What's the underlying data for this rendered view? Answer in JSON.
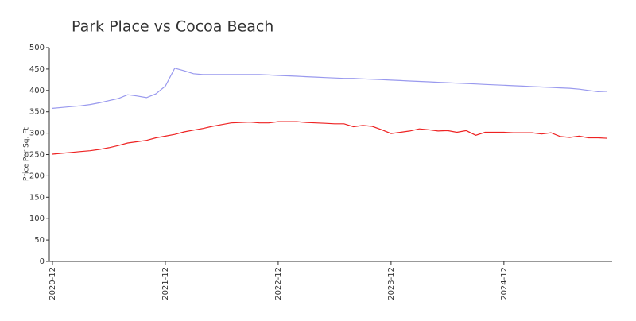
{
  "chart_data": {
    "type": "line",
    "title": "Park Place vs Cocoa Beach",
    "y_label": "Price Per Sq. Ft",
    "categories": [
      "2020-12",
      null,
      null,
      null,
      null,
      null,
      null,
      null,
      null,
      null,
      null,
      null,
      "2021-12",
      null,
      null,
      null,
      null,
      null,
      null,
      null,
      null,
      null,
      null,
      null,
      "2022-12",
      null,
      null,
      null,
      null,
      null,
      null,
      null,
      null,
      null,
      null,
      null,
      "2023-12",
      null,
      null,
      null,
      null,
      null,
      null,
      null,
      null,
      null,
      null,
      null,
      "2024-12",
      null,
      null,
      null,
      null,
      null,
      null,
      null,
      null,
      null,
      null,
      null
    ],
    "series": [
      {
        "color": "#9999ee",
        "values": [
          358,
          360,
          362,
          364,
          367,
          371,
          376,
          381,
          390,
          387,
          383,
          392,
          410,
          452,
          446,
          439,
          437,
          437,
          437,
          437,
          437,
          437,
          437,
          436,
          435,
          434,
          433,
          432,
          431,
          430,
          429,
          428,
          428,
          427,
          426,
          425,
          424,
          423,
          422,
          421,
          420,
          419,
          418,
          417,
          416,
          415,
          414,
          413,
          412,
          411,
          410,
          409,
          408,
          407,
          406,
          405,
          403,
          400,
          397,
          398
        ]
      },
      {
        "color": "#ee2222",
        "values": [
          251,
          253,
          255,
          257,
          259,
          262,
          266,
          271,
          277,
          280,
          283,
          289,
          293,
          297,
          303,
          307,
          311,
          316,
          320,
          324,
          325,
          326,
          324,
          324,
          327,
          327,
          327,
          325,
          324,
          323,
          322,
          322,
          315,
          318,
          316,
          308,
          299,
          302,
          305,
          310,
          308,
          305,
          306,
          302,
          306,
          295,
          302,
          302,
          302,
          301,
          301,
          301,
          298,
          301,
          292,
          290,
          293,
          289,
          289,
          288
        ]
      }
    ],
    "ylim": [
      0,
      500
    ],
    "yticks": [
      0,
      50,
      100,
      150,
      200,
      250,
      300,
      350,
      400,
      450,
      500
    ]
  }
}
